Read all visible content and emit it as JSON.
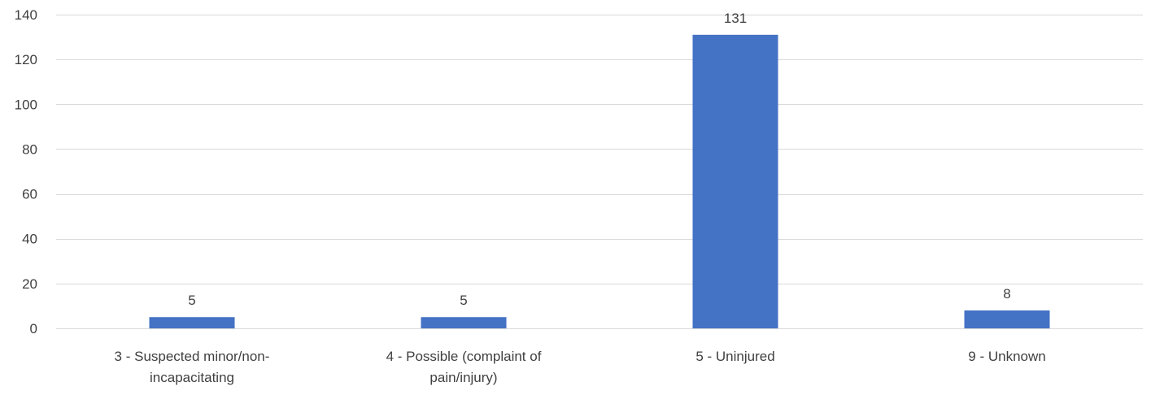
{
  "chart_data": {
    "type": "bar",
    "categories": [
      [
        "3 - Suspected minor/non-",
        "incapacitating"
      ],
      [
        "4 - Possible (complaint of",
        "pain/injury)"
      ],
      [
        "5 - Uninjured"
      ],
      [
        "9 - Unknown"
      ]
    ],
    "values": [
      5,
      5,
      131,
      8
    ],
    "data_labels": [
      "5",
      "5",
      "131",
      "8"
    ],
    "ylim": [
      0,
      140
    ],
    "yticks": [
      0,
      20,
      40,
      60,
      80,
      100,
      120,
      140
    ],
    "grid": true,
    "legend": "none",
    "colors": {
      "bar": "#4472C4",
      "grid": "#D9D9D9",
      "text": "#404040"
    }
  }
}
